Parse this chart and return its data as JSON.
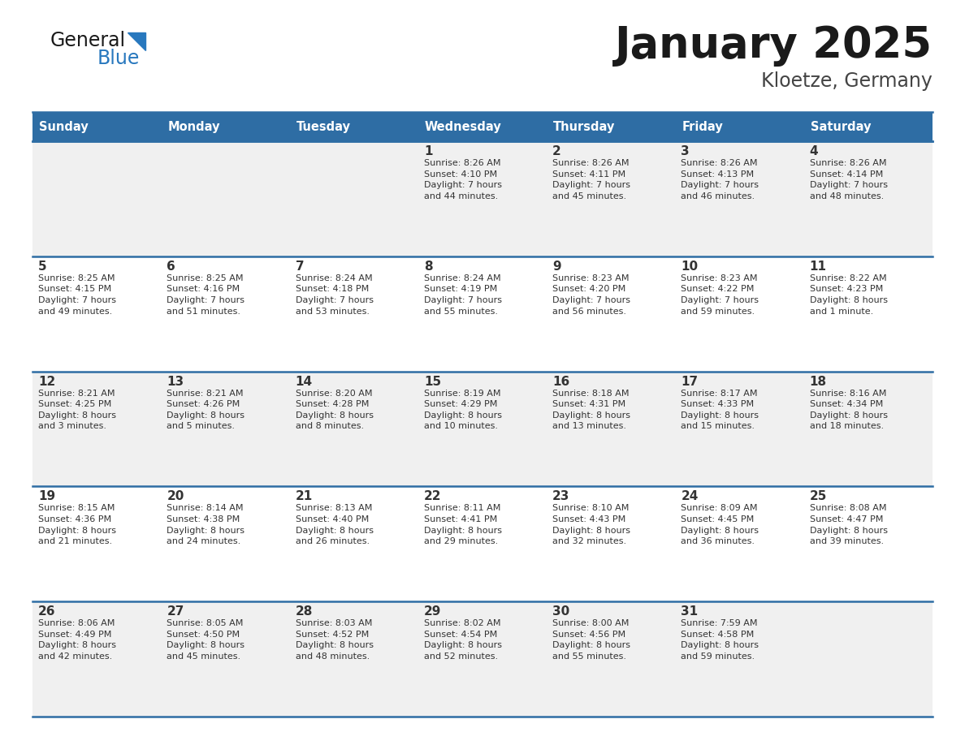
{
  "title": "January 2025",
  "subtitle": "Kloetze, Germany",
  "days_of_week": [
    "Sunday",
    "Monday",
    "Tuesday",
    "Wednesday",
    "Thursday",
    "Friday",
    "Saturday"
  ],
  "header_bg": "#2E6DA4",
  "header_text_color": "#FFFFFF",
  "cell_bg_even": "#F0F0F0",
  "cell_bg_odd": "#FFFFFF",
  "cell_border_color": "#2E6DA4",
  "day_num_color": "#333333",
  "info_text_color": "#333333",
  "title_color": "#1a1a1a",
  "subtitle_color": "#444444",
  "logo_general_color": "#1a1a1a",
  "logo_blue_color": "#2878BE",
  "weeks": [
    [
      {
        "day": null,
        "info": null
      },
      {
        "day": null,
        "info": null
      },
      {
        "day": null,
        "info": null
      },
      {
        "day": 1,
        "info": "Sunrise: 8:26 AM\nSunset: 4:10 PM\nDaylight: 7 hours\nand 44 minutes."
      },
      {
        "day": 2,
        "info": "Sunrise: 8:26 AM\nSunset: 4:11 PM\nDaylight: 7 hours\nand 45 minutes."
      },
      {
        "day": 3,
        "info": "Sunrise: 8:26 AM\nSunset: 4:13 PM\nDaylight: 7 hours\nand 46 minutes."
      },
      {
        "day": 4,
        "info": "Sunrise: 8:26 AM\nSunset: 4:14 PM\nDaylight: 7 hours\nand 48 minutes."
      }
    ],
    [
      {
        "day": 5,
        "info": "Sunrise: 8:25 AM\nSunset: 4:15 PM\nDaylight: 7 hours\nand 49 minutes."
      },
      {
        "day": 6,
        "info": "Sunrise: 8:25 AM\nSunset: 4:16 PM\nDaylight: 7 hours\nand 51 minutes."
      },
      {
        "day": 7,
        "info": "Sunrise: 8:24 AM\nSunset: 4:18 PM\nDaylight: 7 hours\nand 53 minutes."
      },
      {
        "day": 8,
        "info": "Sunrise: 8:24 AM\nSunset: 4:19 PM\nDaylight: 7 hours\nand 55 minutes."
      },
      {
        "day": 9,
        "info": "Sunrise: 8:23 AM\nSunset: 4:20 PM\nDaylight: 7 hours\nand 56 minutes."
      },
      {
        "day": 10,
        "info": "Sunrise: 8:23 AM\nSunset: 4:22 PM\nDaylight: 7 hours\nand 59 minutes."
      },
      {
        "day": 11,
        "info": "Sunrise: 8:22 AM\nSunset: 4:23 PM\nDaylight: 8 hours\nand 1 minute."
      }
    ],
    [
      {
        "day": 12,
        "info": "Sunrise: 8:21 AM\nSunset: 4:25 PM\nDaylight: 8 hours\nand 3 minutes."
      },
      {
        "day": 13,
        "info": "Sunrise: 8:21 AM\nSunset: 4:26 PM\nDaylight: 8 hours\nand 5 minutes."
      },
      {
        "day": 14,
        "info": "Sunrise: 8:20 AM\nSunset: 4:28 PM\nDaylight: 8 hours\nand 8 minutes."
      },
      {
        "day": 15,
        "info": "Sunrise: 8:19 AM\nSunset: 4:29 PM\nDaylight: 8 hours\nand 10 minutes."
      },
      {
        "day": 16,
        "info": "Sunrise: 8:18 AM\nSunset: 4:31 PM\nDaylight: 8 hours\nand 13 minutes."
      },
      {
        "day": 17,
        "info": "Sunrise: 8:17 AM\nSunset: 4:33 PM\nDaylight: 8 hours\nand 15 minutes."
      },
      {
        "day": 18,
        "info": "Sunrise: 8:16 AM\nSunset: 4:34 PM\nDaylight: 8 hours\nand 18 minutes."
      }
    ],
    [
      {
        "day": 19,
        "info": "Sunrise: 8:15 AM\nSunset: 4:36 PM\nDaylight: 8 hours\nand 21 minutes."
      },
      {
        "day": 20,
        "info": "Sunrise: 8:14 AM\nSunset: 4:38 PM\nDaylight: 8 hours\nand 24 minutes."
      },
      {
        "day": 21,
        "info": "Sunrise: 8:13 AM\nSunset: 4:40 PM\nDaylight: 8 hours\nand 26 minutes."
      },
      {
        "day": 22,
        "info": "Sunrise: 8:11 AM\nSunset: 4:41 PM\nDaylight: 8 hours\nand 29 minutes."
      },
      {
        "day": 23,
        "info": "Sunrise: 8:10 AM\nSunset: 4:43 PM\nDaylight: 8 hours\nand 32 minutes."
      },
      {
        "day": 24,
        "info": "Sunrise: 8:09 AM\nSunset: 4:45 PM\nDaylight: 8 hours\nand 36 minutes."
      },
      {
        "day": 25,
        "info": "Sunrise: 8:08 AM\nSunset: 4:47 PM\nDaylight: 8 hours\nand 39 minutes."
      }
    ],
    [
      {
        "day": 26,
        "info": "Sunrise: 8:06 AM\nSunset: 4:49 PM\nDaylight: 8 hours\nand 42 minutes."
      },
      {
        "day": 27,
        "info": "Sunrise: 8:05 AM\nSunset: 4:50 PM\nDaylight: 8 hours\nand 45 minutes."
      },
      {
        "day": 28,
        "info": "Sunrise: 8:03 AM\nSunset: 4:52 PM\nDaylight: 8 hours\nand 48 minutes."
      },
      {
        "day": 29,
        "info": "Sunrise: 8:02 AM\nSunset: 4:54 PM\nDaylight: 8 hours\nand 52 minutes."
      },
      {
        "day": 30,
        "info": "Sunrise: 8:00 AM\nSunset: 4:56 PM\nDaylight: 8 hours\nand 55 minutes."
      },
      {
        "day": 31,
        "info": "Sunrise: 7:59 AM\nSunset: 4:58 PM\nDaylight: 8 hours\nand 59 minutes."
      },
      {
        "day": null,
        "info": null
      }
    ]
  ],
  "fig_width": 11.88,
  "fig_height": 9.18,
  "dpi": 100
}
